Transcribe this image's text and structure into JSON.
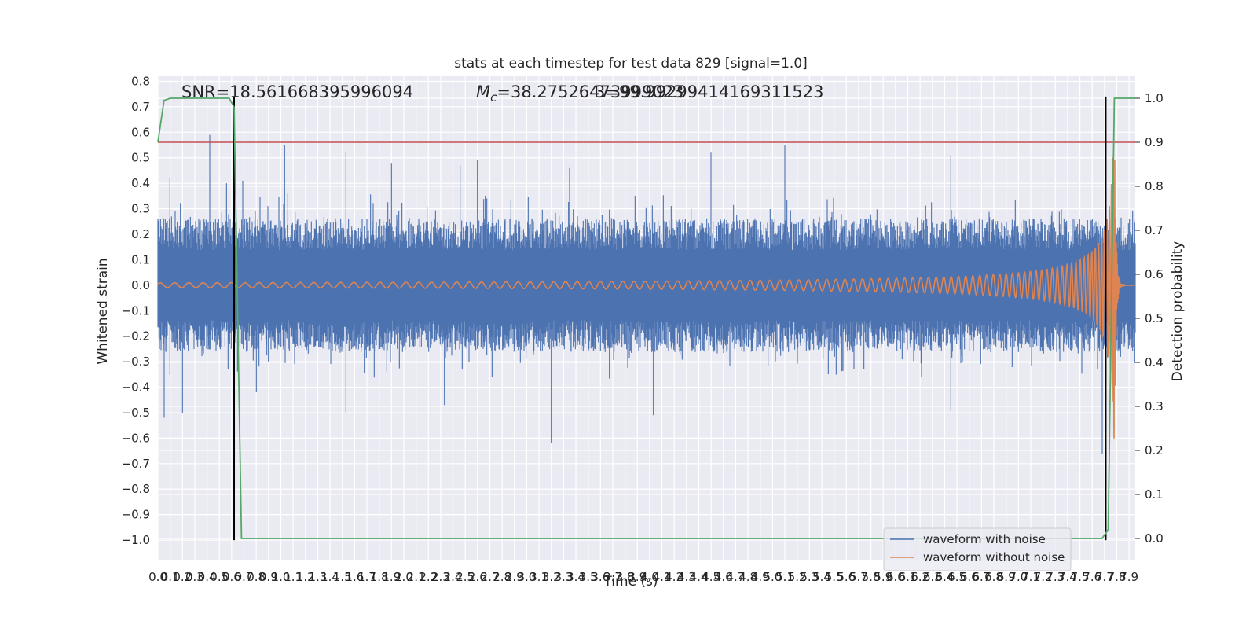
{
  "chart_data": {
    "type": "line",
    "title": "stats at each timestep for test data 829 [signal=1.0]",
    "xlabel": "Time (s)",
    "ylabel": "Whitened strain",
    "y2label": "Detection probability",
    "xlim": [
      0.0,
      7.95
    ],
    "ylim": [
      -1.08,
      0.82
    ],
    "y2lim": [
      -0.05,
      1.05
    ],
    "xticks": [
      "0.0",
      "0.1",
      "0.2",
      "0.3",
      "0.4",
      "0.5",
      "0.6",
      "0.7",
      "0.8",
      "0.9",
      "1.0",
      "1.1",
      "1.2",
      "1.3",
      "1.4",
      "1.5",
      "1.6",
      "1.7",
      "1.8",
      "1.9",
      "2.0",
      "2.1",
      "2.2",
      "2.3",
      "2.4",
      "2.5",
      "2.6",
      "2.7",
      "2.8",
      "2.9",
      "3.0",
      "3.1",
      "3.2",
      "3.3",
      "3.4",
      "3.5",
      "3.6",
      "3.7",
      "3.8",
      "3.9",
      "4.0",
      "4.1",
      "4.2",
      "4.3",
      "4.4",
      "4.5",
      "4.6",
      "4.7",
      "4.8",
      "4.9",
      "5.0",
      "5.1",
      "5.2",
      "5.3",
      "5.4",
      "5.5",
      "5.6",
      "5.7",
      "5.8",
      "5.9",
      "6.0",
      "6.1",
      "6.2",
      "6.3",
      "6.4",
      "6.5",
      "6.6",
      "6.7",
      "6.8",
      "6.9",
      "7.0",
      "7.1",
      "7.2",
      "7.3",
      "7.4",
      "7.5",
      "7.6",
      "7.7",
      "7.8",
      "7.9"
    ],
    "yticks": [
      "0.8",
      "0.7",
      "0.6",
      "0.5",
      "0.4",
      "0.3",
      "0.2",
      "0.1",
      "0.0",
      "−0.1",
      "−0.2",
      "−0.3",
      "−0.4",
      "−0.5",
      "−0.6",
      "−0.7",
      "−0.8",
      "−0.9",
      "−1.0"
    ],
    "y2ticks": [
      "1.0",
      "0.9",
      "0.8",
      "0.7",
      "0.6",
      "0.5",
      "0.4",
      "0.3",
      "0.2",
      "0.1",
      "0.0"
    ],
    "annotations": {
      "snr": "SNR=18.561668395996094",
      "mc_prefix": "M",
      "mc_sub": "c",
      "mc_value": "=38.27526473999023",
      "overlap": "3=99.99299414169311523"
    },
    "series": [
      {
        "name": "waveform with noise",
        "color": "#4c72b0",
        "style": "noisy-strain",
        "amplitude_typical": 0.25,
        "peak_values": [
          {
            "x": 0.1,
            "y": 0.42
          },
          {
            "x": 0.42,
            "y": 0.59
          },
          {
            "x": 0.56,
            "y": 0.4
          },
          {
            "x": 0.69,
            "y": 0.41
          },
          {
            "x": 1.03,
            "y": 0.55
          },
          {
            "x": 1.53,
            "y": 0.52
          },
          {
            "x": 1.9,
            "y": 0.48
          },
          {
            "x": 2.46,
            "y": 0.47
          },
          {
            "x": 2.6,
            "y": 0.49
          },
          {
            "x": 3.35,
            "y": 0.46
          },
          {
            "x": 4.5,
            "y": 0.52
          },
          {
            "x": 5.1,
            "y": 0.55
          },
          {
            "x": 6.45,
            "y": 0.51
          },
          {
            "x": 0.05,
            "y": -0.52
          },
          {
            "x": 0.2,
            "y": -0.5
          },
          {
            "x": 0.8,
            "y": -0.42
          },
          {
            "x": 1.53,
            "y": -0.5
          },
          {
            "x": 2.33,
            "y": -0.47
          },
          {
            "x": 3.2,
            "y": -0.62
          },
          {
            "x": 4.03,
            "y": -0.51
          },
          {
            "x": 6.45,
            "y": -0.49
          },
          {
            "x": 7.68,
            "y": -0.66
          }
        ]
      },
      {
        "name": "waveform without noise",
        "color": "#dd8452",
        "style": "chirp",
        "merger_time": 7.78,
        "peak_amplitude": 0.7,
        "min_value": -0.65
      },
      {
        "name": "Detection probability",
        "color": "#55a868",
        "axis": "y2",
        "x": [
          0.0,
          0.05,
          0.1,
          0.2,
          0.3,
          0.4,
          0.5,
          0.58,
          0.62,
          0.68,
          7.0,
          7.55,
          7.6,
          7.68,
          7.73,
          7.78,
          7.85,
          7.95
        ],
        "y": [
          0.9,
          0.995,
          1.0,
          1.0,
          1.0,
          1.0,
          1.0,
          1.0,
          0.98,
          0.0,
          0.0,
          0.0,
          0.0,
          0.0,
          0.02,
          1.0,
          1.0,
          1.0
        ]
      }
    ],
    "threshold": {
      "axis": "y2",
      "value": 0.9,
      "color": "#c44e52"
    },
    "vlines": [
      {
        "x": 0.62,
        "ymin": -1.0,
        "ymax": 0.74,
        "color": "#000000"
      },
      {
        "x": 7.71,
        "ymin": -1.0,
        "ymax": 0.74,
        "color": "#000000"
      }
    ],
    "legend": {
      "location": "lower right"
    },
    "grid": true,
    "style": {
      "background": "#eaeaf2",
      "grid_color": "#ffffff",
      "text_color": "#262626"
    }
  }
}
